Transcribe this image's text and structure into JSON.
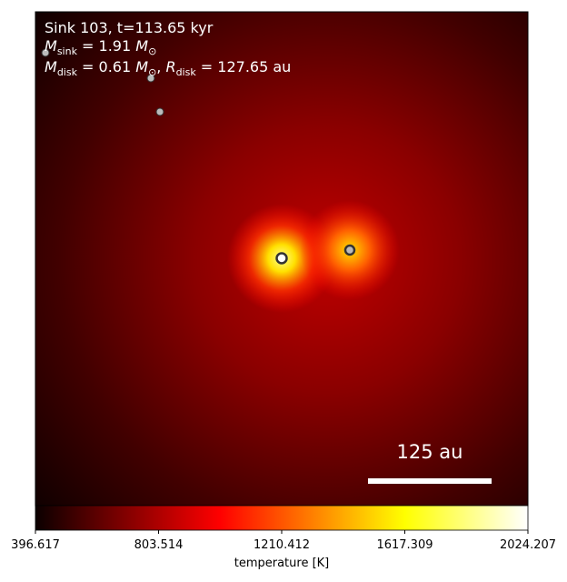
{
  "annotations": {
    "line1": "Sink 103, t=113.65 kyr",
    "line2": {
      "symbol": "M",
      "sub": "sink",
      "value": " = 1.91 ",
      "unit": "M",
      "unit_sub": "⊙"
    },
    "line3": {
      "symbol": "M",
      "sub": "disk",
      "value": " = 0.61 ",
      "unit": "M",
      "unit_sub": "⊙",
      "sep": ", ",
      "symbol2": "R",
      "sub2": "disk",
      "value2": " = 127.65 au"
    }
  },
  "scale_bar": {
    "label": "125 au"
  },
  "colorbar": {
    "label": "temperature [K]",
    "lim": [
      396.617,
      2024.207
    ],
    "ticks": [
      396.617,
      803.514,
      1210.412,
      1617.309,
      2024.207
    ]
  }
}
